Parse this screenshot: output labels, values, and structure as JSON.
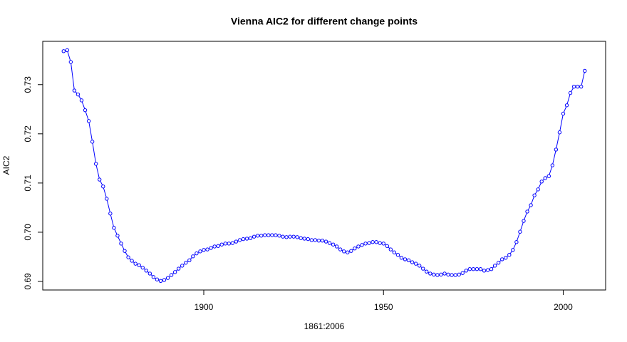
{
  "chart_data": {
    "type": "line",
    "title": "Vienna AIC2 for different change points",
    "xlabel": "1861:2006",
    "ylabel": "AIC2",
    "color": "#0000ff",
    "x": [
      1861,
      1862,
      1863,
      1864,
      1865,
      1866,
      1867,
      1868,
      1869,
      1870,
      1871,
      1872,
      1873,
      1874,
      1875,
      1876,
      1877,
      1878,
      1879,
      1880,
      1881,
      1882,
      1883,
      1884,
      1885,
      1886,
      1887,
      1888,
      1889,
      1890,
      1891,
      1892,
      1893,
      1894,
      1895,
      1896,
      1897,
      1898,
      1899,
      1900,
      1901,
      1902,
      1903,
      1904,
      1905,
      1906,
      1907,
      1908,
      1909,
      1910,
      1911,
      1912,
      1913,
      1914,
      1915,
      1916,
      1917,
      1918,
      1919,
      1920,
      1921,
      1922,
      1923,
      1924,
      1925,
      1926,
      1927,
      1928,
      1929,
      1930,
      1931,
      1932,
      1933,
      1934,
      1935,
      1936,
      1937,
      1938,
      1939,
      1940,
      1941,
      1942,
      1943,
      1944,
      1945,
      1946,
      1947,
      1948,
      1949,
      1950,
      1951,
      1952,
      1953,
      1954,
      1955,
      1956,
      1957,
      1958,
      1959,
      1960,
      1961,
      1962,
      1963,
      1964,
      1965,
      1966,
      1967,
      1968,
      1969,
      1970,
      1971,
      1972,
      1973,
      1974,
      1975,
      1976,
      1977,
      1978,
      1979,
      1980,
      1981,
      1982,
      1983,
      1984,
      1985,
      1986,
      1987,
      1988,
      1989,
      1990,
      1991,
      1992,
      1993,
      1994,
      1995,
      1996,
      1997,
      1998,
      1999,
      2000,
      2001,
      2002,
      2003,
      2004,
      2005,
      2006
    ],
    "values": [
      0.7368,
      0.737,
      0.7346,
      0.7288,
      0.728,
      0.7268,
      0.7248,
      0.7226,
      0.7184,
      0.7139,
      0.7107,
      0.7093,
      0.7068,
      0.7038,
      0.7009,
      0.6993,
      0.6977,
      0.6962,
      0.6949,
      0.6942,
      0.6936,
      0.6933,
      0.6928,
      0.6922,
      0.6916,
      0.6909,
      0.6904,
      0.6901,
      0.6903,
      0.6907,
      0.6913,
      0.6919,
      0.6926,
      0.6932,
      0.6938,
      0.6943,
      0.6951,
      0.6957,
      0.6961,
      0.6964,
      0.6965,
      0.6968,
      0.6971,
      0.6972,
      0.6975,
      0.6977,
      0.6977,
      0.6978,
      0.6981,
      0.6984,
      0.6986,
      0.6987,
      0.6988,
      0.6991,
      0.6993,
      0.6993,
      0.6994,
      0.6994,
      0.6994,
      0.6994,
      0.6993,
      0.6991,
      0.699,
      0.6991,
      0.6991,
      0.699,
      0.6988,
      0.6987,
      0.6986,
      0.6984,
      0.6984,
      0.6983,
      0.6983,
      0.6981,
      0.6978,
      0.6975,
      0.6971,
      0.6965,
      0.6961,
      0.6959,
      0.6962,
      0.6967,
      0.6971,
      0.6974,
      0.6977,
      0.6978,
      0.698,
      0.698,
      0.6978,
      0.6977,
      0.6972,
      0.6965,
      0.6959,
      0.6954,
      0.6948,
      0.6945,
      0.6943,
      0.6939,
      0.6936,
      0.6932,
      0.6926,
      0.692,
      0.6916,
      0.6914,
      0.6913,
      0.6914,
      0.6916,
      0.6914,
      0.6913,
      0.6913,
      0.6914,
      0.6917,
      0.6922,
      0.6925,
      0.6925,
      0.6925,
      0.6925,
      0.6922,
      0.6923,
      0.6925,
      0.6932,
      0.6938,
      0.6945,
      0.6948,
      0.6954,
      0.6964,
      0.698,
      0.7001,
      0.7023,
      0.7042,
      0.7055,
      0.7075,
      0.7087,
      0.7103,
      0.711,
      0.7114,
      0.7136,
      0.7168,
      0.7203,
      0.7241,
      0.7258,
      0.7283,
      0.7296,
      0.7296,
      0.7296,
      0.7328
    ],
    "xlim": [
      1855.2,
      2011.8
    ],
    "xticks": [
      1900,
      1950,
      2000
    ],
    "ylim": [
      0.68826,
      0.7388
    ],
    "yticks": [
      0.69,
      {
        "value": 0.7,
        "label": "0.70"
      },
      0.71,
      0.72,
      0.73
    ]
  }
}
